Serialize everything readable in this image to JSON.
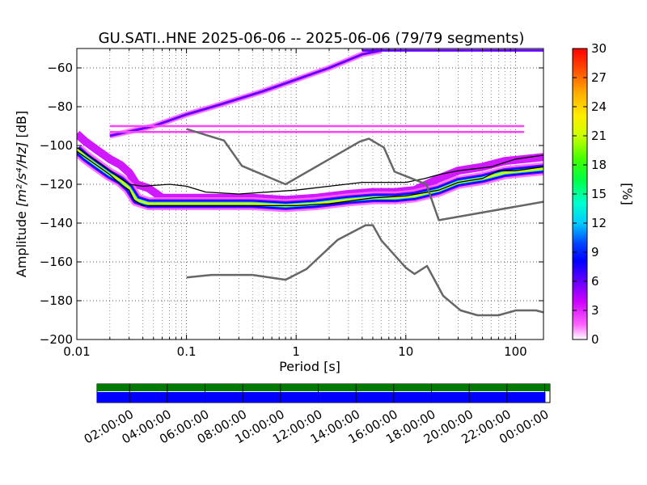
{
  "chart_data": {
    "type": "heatmap",
    "title": "GU.SATI..HNE   2025-06-06 -- 2025-06-06  (79/79 segments)",
    "xlabel": "Period [s]",
    "ylabel_prefix": "Amplitude ",
    "ylabel_units": "[m²/s⁴/Hz]",
    "ylabel_suffix": " [dB]",
    "x_scale": "log",
    "xlim": [
      0.01,
      180
    ],
    "ylim": [
      -200,
      -50
    ],
    "x_ticks": [
      {
        "value": 0.01,
        "label": "0.01"
      },
      {
        "value": 0.1,
        "label": "0.1"
      },
      {
        "value": 1,
        "label": "1"
      },
      {
        "value": 10,
        "label": "10"
      },
      {
        "value": 100,
        "label": "100"
      }
    ],
    "y_ticks": [
      {
        "value": -60,
        "label": "−60"
      },
      {
        "value": -80,
        "label": "−80"
      },
      {
        "value": -100,
        "label": "−100"
      },
      {
        "value": -120,
        "label": "−120"
      },
      {
        "value": -140,
        "label": "−140"
      },
      {
        "value": -160,
        "label": "−160"
      },
      {
        "value": -180,
        "label": "−180"
      },
      {
        "value": -200,
        "label": "−200"
      }
    ],
    "grid": true,
    "colorbar": {
      "label": "[%]",
      "range": [
        0,
        30
      ],
      "ticks": [
        "0",
        "3",
        "6",
        "9",
        "12",
        "15",
        "18",
        "21",
        "24",
        "27",
        "30"
      ]
    },
    "dominant_band": [
      {
        "x": 0.01,
        "y": -102
      },
      {
        "x": 0.012,
        "y": -106
      },
      {
        "x": 0.015,
        "y": -110
      },
      {
        "x": 0.02,
        "y": -115
      },
      {
        "x": 0.025,
        "y": -118
      },
      {
        "x": 0.03,
        "y": -122
      },
      {
        "x": 0.035,
        "y": -128
      },
      {
        "x": 0.045,
        "y": -130
      },
      {
        "x": 0.06,
        "y": -130
      },
      {
        "x": 0.1,
        "y": -130
      },
      {
        "x": 0.2,
        "y": -130
      },
      {
        "x": 0.4,
        "y": -130
      },
      {
        "x": 0.8,
        "y": -131
      },
      {
        "x": 1.5,
        "y": -130
      },
      {
        "x": 3,
        "y": -128
      },
      {
        "x": 5,
        "y": -127
      },
      {
        "x": 8,
        "y": -127
      },
      {
        "x": 12,
        "y": -126
      },
      {
        "x": 20,
        "y": -123
      },
      {
        "x": 30,
        "y": -119
      },
      {
        "x": 50,
        "y": -117
      },
      {
        "x": 80,
        "y": -114
      },
      {
        "x": 120,
        "y": -113
      },
      {
        "x": 180,
        "y": -112
      }
    ],
    "diagonal_band": [
      {
        "x": 0.02,
        "y": -95
      },
      {
        "x": 0.05,
        "y": -90
      },
      {
        "x": 0.1,
        "y": -84
      },
      {
        "x": 0.2,
        "y": -79
      },
      {
        "x": 0.5,
        "y": -72
      },
      {
        "x": 1,
        "y": -66
      },
      {
        "x": 2,
        "y": -60
      },
      {
        "x": 4,
        "y": -53
      },
      {
        "x": 6,
        "y": -51
      }
    ],
    "horizontal_band_y": [
      -90,
      -93
    ],
    "horizontal_band_x": [
      0.02,
      120
    ],
    "series": [
      {
        "line": "mode",
        "color": "#000000",
        "points": [
          {
            "x": 0.01,
            "y": -103
          },
          {
            "x": 0.015,
            "y": -110
          },
          {
            "x": 0.02,
            "y": -115
          },
          {
            "x": 0.025,
            "y": -120
          },
          {
            "x": 0.03,
            "y": -123
          },
          {
            "x": 0.033,
            "y": -128
          },
          {
            "x": 0.04,
            "y": -131
          },
          {
            "x": 0.1,
            "y": -131
          },
          {
            "x": 0.5,
            "y": -131
          },
          {
            "x": 1,
            "y": -131
          },
          {
            "x": 2,
            "y": -130
          },
          {
            "x": 5,
            "y": -127
          },
          {
            "x": 10,
            "y": -126
          },
          {
            "x": 20,
            "y": -123
          },
          {
            "x": 30,
            "y": -119
          },
          {
            "x": 50,
            "y": -117
          },
          {
            "x": 70,
            "y": -113
          },
          {
            "x": 100,
            "y": -113
          },
          {
            "x": 180,
            "y": -111
          }
        ]
      },
      {
        "line": "mean",
        "color": "#000000",
        "points": [
          {
            "x": 0.01,
            "y": -101
          },
          {
            "x": 0.015,
            "y": -108
          },
          {
            "x": 0.02,
            "y": -113
          },
          {
            "x": 0.025,
            "y": -117
          },
          {
            "x": 0.03,
            "y": -120
          },
          {
            "x": 0.04,
            "y": -121
          },
          {
            "x": 0.07,
            "y": -120
          },
          {
            "x": 0.1,
            "y": -121
          },
          {
            "x": 0.15,
            "y": -124
          },
          {
            "x": 0.3,
            "y": -125
          },
          {
            "x": 1,
            "y": -123
          },
          {
            "x": 2,
            "y": -121
          },
          {
            "x": 4,
            "y": -119
          },
          {
            "x": 10,
            "y": -119
          },
          {
            "x": 15,
            "y": -117
          },
          {
            "x": 20,
            "y": -115
          },
          {
            "x": 30,
            "y": -113
          },
          {
            "x": 60,
            "y": -111
          },
          {
            "x": 100,
            "y": -107
          },
          {
            "x": 180,
            "y": -105
          }
        ]
      },
      {
        "line": "NHNM",
        "color": "#666666",
        "points": [
          {
            "x": 0.1,
            "y": -91.5
          },
          {
            "x": 0.22,
            "y": -97.4
          },
          {
            "x": 0.32,
            "y": -110.5
          },
          {
            "x": 0.8,
            "y": -120
          },
          {
            "x": 3.8,
            "y": -98
          },
          {
            "x": 4.6,
            "y": -96.5
          },
          {
            "x": 6.3,
            "y": -101
          },
          {
            "x": 7.9,
            "y": -113.5
          },
          {
            "x": 15.4,
            "y": -120
          },
          {
            "x": 20,
            "y": -138.5
          },
          {
            "x": 180,
            "y": -129
          }
        ]
      },
      {
        "line": "NLNM",
        "color": "#666666",
        "points": [
          {
            "x": 0.1,
            "y": -168
          },
          {
            "x": 0.17,
            "y": -166.7
          },
          {
            "x": 0.4,
            "y": -166.7
          },
          {
            "x": 0.8,
            "y": -169.2
          },
          {
            "x": 1.24,
            "y": -163.7
          },
          {
            "x": 2.4,
            "y": -148.6
          },
          {
            "x": 4.3,
            "y": -141.1
          },
          {
            "x": 5,
            "y": -141.1
          },
          {
            "x": 6,
            "y": -149
          },
          {
            "x": 10,
            "y": -163
          },
          {
            "x": 12,
            "y": -166.2
          },
          {
            "x": 15.6,
            "y": -162.1
          },
          {
            "x": 21.9,
            "y": -177.5
          },
          {
            "x": 31.6,
            "y": -185
          },
          {
            "x": 45,
            "y": -187.5
          },
          {
            "x": 70,
            "y": -187.5
          },
          {
            "x": 101,
            "y": -185
          },
          {
            "x": 154,
            "y": -185
          },
          {
            "x": 180,
            "y": -186
          }
        ]
      }
    ]
  },
  "coverage": {
    "tick_labels": [
      "02:00:00",
      "04:00:00",
      "06:00:00",
      "08:00:00",
      "10:00:00",
      "12:00:00",
      "14:00:00",
      "16:00:00",
      "18:00:00",
      "20:00:00",
      "22:00:00",
      "00:00:00"
    ],
    "data_color": "#007a00",
    "used_color": "#0000ff",
    "data_fraction": 1.0,
    "used_fraction": 0.99
  }
}
